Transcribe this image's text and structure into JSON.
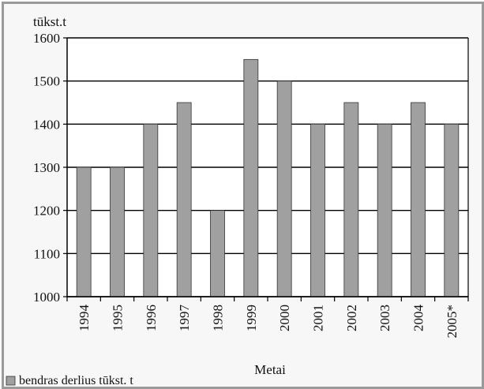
{
  "chart_data": {
    "type": "bar",
    "title": "",
    "ylabel": "tūkst.t",
    "xlabel": "Metai",
    "categories": [
      "1994",
      "1995",
      "1996",
      "1997",
      "1998",
      "1999",
      "2000",
      "2001",
      "2002",
      "2003",
      "2004",
      "2005*"
    ],
    "series": [
      {
        "name": "bendras derlius tūkst. t",
        "values": [
          1300,
          1300,
          1400,
          1450,
          1200,
          1550,
          1500,
          1400,
          1450,
          1400,
          1450,
          1400
        ]
      }
    ],
    "ylim": [
      1000,
      1600
    ],
    "yticks": [
      1000,
      1100,
      1200,
      1300,
      1400,
      1500,
      1600
    ],
    "grid": true,
    "legend_position": "bottom-left",
    "colors": {
      "bar_fill": "#a0a0a0",
      "bar_stroke": "#333333",
      "grid": "#000000",
      "plot_background": "#ffffff",
      "frame": "#9a9a9a"
    }
  }
}
